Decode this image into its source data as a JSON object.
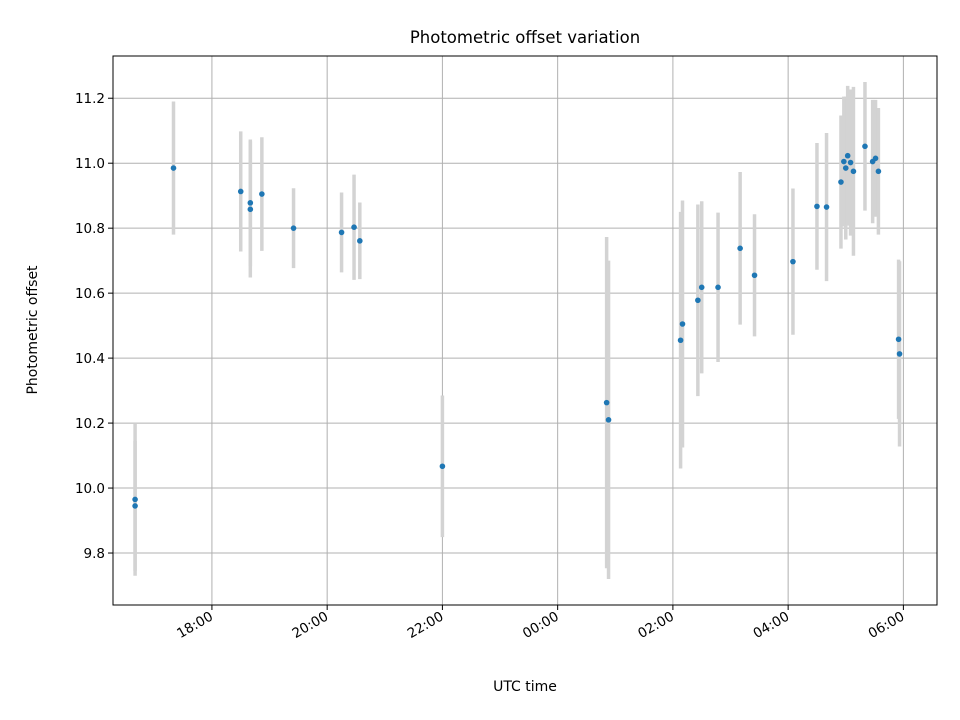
{
  "chart_data": {
    "type": "scatter",
    "title": "Photometric offset variation",
    "xlabel": "UTC time",
    "ylabel": "Photometric offset",
    "x_is_time": true,
    "xlim": [
      "16:17",
      "06:35"
    ],
    "ylim": [
      9.64,
      11.33
    ],
    "x_ticks": [
      "18:00",
      "20:00",
      "22:00",
      "00:00",
      "02:00",
      "04:00",
      "06:00"
    ],
    "y_ticks": [
      "9.8",
      "10.0",
      "10.2",
      "10.4",
      "10.6",
      "10.8",
      "11.0",
      "11.2"
    ],
    "grid": true,
    "marker_color": "#1f77b4",
    "errorbar_color": "#d3d3d3",
    "points": [
      {
        "x": "16:40",
        "y": 9.965,
        "err": 0.235
      },
      {
        "x": "16:40",
        "y": 9.945,
        "err": 0.2
      },
      {
        "x": "17:20",
        "y": 10.985,
        "err": 0.205
      },
      {
        "x": "18:30",
        "y": 10.913,
        "err": 0.185
      },
      {
        "x": "18:40",
        "y": 10.878,
        "err": 0.195
      },
      {
        "x": "18:40",
        "y": 10.858,
        "err": 0.21
      },
      {
        "x": "18:52",
        "y": 10.905,
        "err": 0.175
      },
      {
        "x": "19:25",
        "y": 10.8,
        "err": 0.123
      },
      {
        "x": "20:15",
        "y": 10.787,
        "err": 0.123
      },
      {
        "x": "20:28",
        "y": 10.803,
        "err": 0.162
      },
      {
        "x": "20:34",
        "y": 10.761,
        "err": 0.118
      },
      {
        "x": "22:00",
        "y": 10.067,
        "err": 0.218
      },
      {
        "x": "00:51",
        "y": 10.263,
        "err": 0.51
      },
      {
        "x": "00:53",
        "y": 10.21,
        "err": 0.49
      },
      {
        "x": "02:08",
        "y": 10.455,
        "err": 0.395
      },
      {
        "x": "02:10",
        "y": 10.505,
        "err": 0.38
      },
      {
        "x": "02:26",
        "y": 10.578,
        "err": 0.295
      },
      {
        "x": "02:30",
        "y": 10.618,
        "err": 0.265
      },
      {
        "x": "02:47",
        "y": 10.618,
        "err": 0.23
      },
      {
        "x": "03:10",
        "y": 10.738,
        "err": 0.235
      },
      {
        "x": "03:25",
        "y": 10.655,
        "err": 0.188
      },
      {
        "x": "04:05",
        "y": 10.697,
        "err": 0.225
      },
      {
        "x": "04:30",
        "y": 10.867,
        "err": 0.195
      },
      {
        "x": "04:40",
        "y": 10.865,
        "err": 0.228
      },
      {
        "x": "04:55",
        "y": 10.942,
        "err": 0.205
      },
      {
        "x": "04:58",
        "y": 11.005,
        "err": 0.2
      },
      {
        "x": "05:00",
        "y": 10.985,
        "err": 0.22
      },
      {
        "x": "05:02",
        "y": 11.023,
        "err": 0.215
      },
      {
        "x": "05:05",
        "y": 11.002,
        "err": 0.225
      },
      {
        "x": "05:08",
        "y": 10.975,
        "err": 0.26
      },
      {
        "x": "05:20",
        "y": 11.052,
        "err": 0.198
      },
      {
        "x": "05:28",
        "y": 11.005,
        "err": 0.19
      },
      {
        "x": "05:31",
        "y": 11.015,
        "err": 0.18
      },
      {
        "x": "05:34",
        "y": 10.975,
        "err": 0.195
      },
      {
        "x": "05:55",
        "y": 10.458,
        "err": 0.245
      },
      {
        "x": "05:56",
        "y": 10.413,
        "err": 0.285
      }
    ]
  }
}
